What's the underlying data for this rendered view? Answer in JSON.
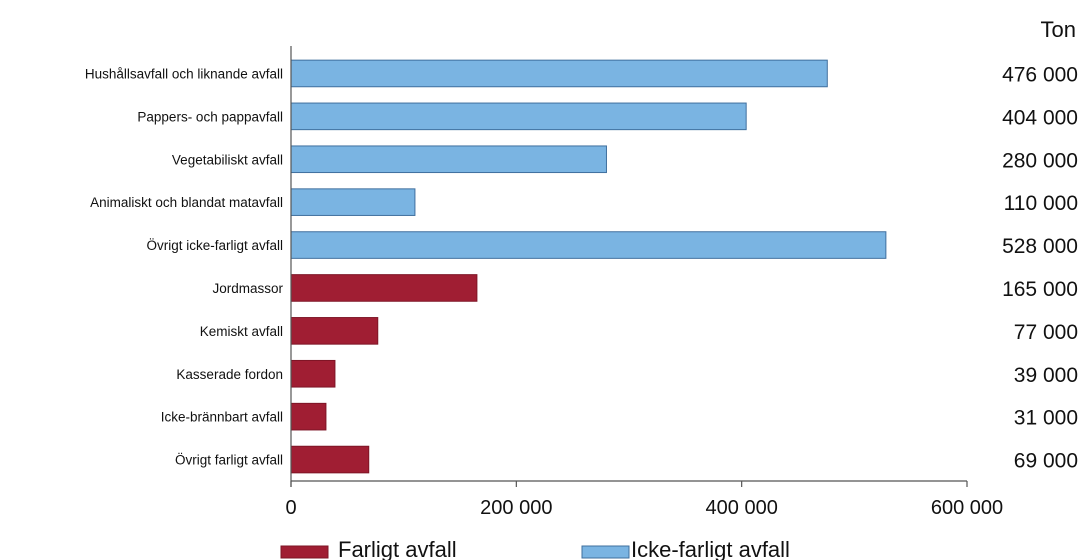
{
  "chart_data": {
    "type": "bar",
    "orientation": "horizontal",
    "unit_label": "Ton",
    "categories": [
      "Hushållsavfall och liknande avfall",
      "Pappers- och pappavfall",
      "Vegetabiliskt avfall",
      "Animaliskt och blandat matavfall",
      "Övrigt icke-farligt avfall",
      "Jordmassor",
      "Kemiskt avfall",
      "Kasserade fordon",
      "Icke-brännbart avfall",
      "Övrigt farligt avfall"
    ],
    "values": [
      476000,
      404000,
      280000,
      110000,
      528000,
      165000,
      77000,
      39000,
      31000,
      69000
    ],
    "value_labels": [
      "476 000",
      "404 000",
      "280 000",
      "110 000",
      "528 000",
      "165 000",
      "77 000",
      "39 000",
      "31 000",
      "69 000"
    ],
    "bar_groups": [
      "Icke-farligt avfall",
      "Icke-farligt avfall",
      "Icke-farligt avfall",
      "Icke-farligt avfall",
      "Icke-farligt avfall",
      "Farligt avfall",
      "Farligt avfall",
      "Farligt avfall",
      "Farligt avfall",
      "Farligt avfall"
    ],
    "series": [
      {
        "name": "Farligt avfall",
        "color": "#a01e33"
      },
      {
        "name": "Icke-farligt avfall",
        "color": "#7ab4e2"
      }
    ],
    "xlim": [
      0,
      600000
    ],
    "xticks": [
      0,
      200000,
      400000,
      600000
    ],
    "xtick_labels": [
      "0",
      "200 000",
      "400 000",
      "600 000"
    ],
    "grid": false,
    "legend_position": "bottom"
  }
}
